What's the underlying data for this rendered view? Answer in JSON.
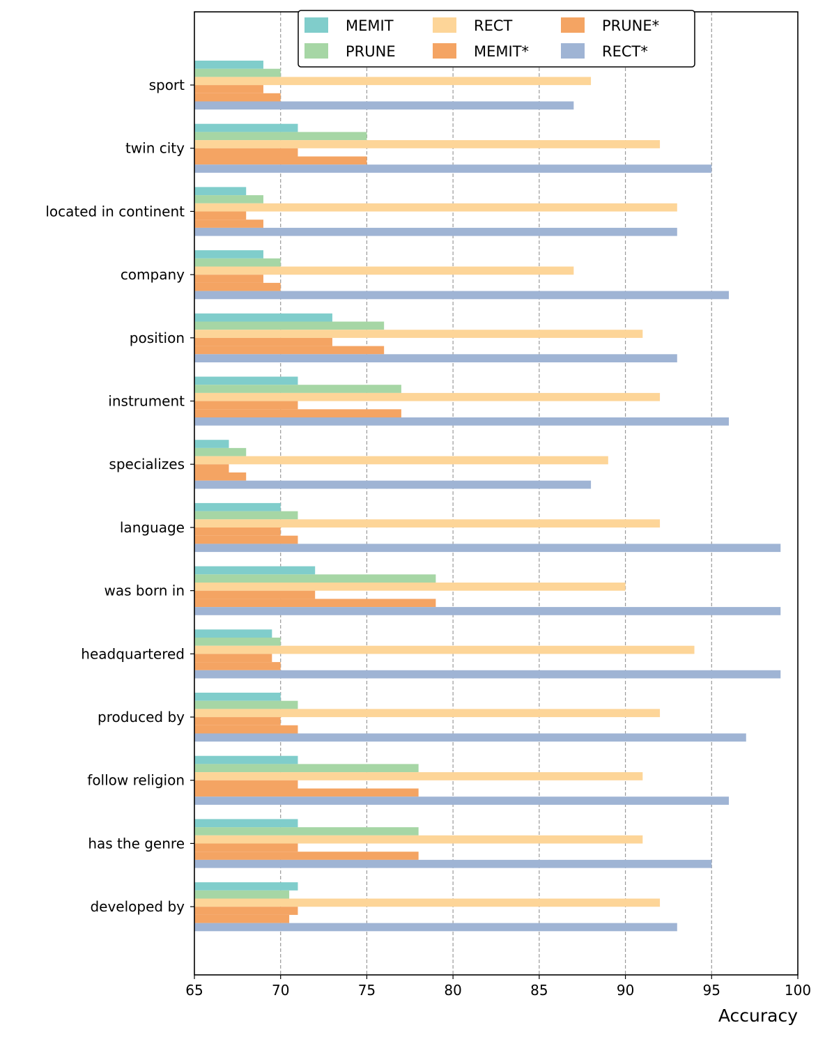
{
  "chart_data": {
    "type": "bar",
    "orientation": "horizontal",
    "title": "",
    "xlabel": "Accuracy",
    "ylabel": "",
    "xlim": [
      65,
      100
    ],
    "xticks": [
      "65",
      "70",
      "75",
      "80",
      "85",
      "90",
      "95",
      "100"
    ],
    "grid": "vertical dashed",
    "legend_position": "top-center",
    "categories": [
      "sport",
      "twin city",
      "located in continent",
      "company",
      "position",
      "instrument",
      "specializes",
      "language",
      "was born in",
      "headquartered",
      "produced by",
      "follow religion",
      "has the genre",
      "developed by"
    ],
    "series": [
      {
        "name": "MEMIT",
        "color": "#80cdcb",
        "values": [
          69,
          71,
          68,
          69,
          73,
          71,
          67,
          70,
          72,
          69.5,
          70,
          71,
          71,
          71
        ]
      },
      {
        "name": "PRUNE",
        "color": "#a6d6a5",
        "values": [
          70,
          75,
          69,
          70,
          76,
          77,
          68,
          71,
          79,
          70,
          71,
          78,
          78,
          70.5
        ]
      },
      {
        "name": "RECT",
        "color": "#fdd598",
        "values": [
          88,
          92,
          93,
          87,
          91,
          92,
          89,
          92,
          90,
          94,
          92,
          91,
          91,
          92
        ]
      },
      {
        "name": "MEMIT*",
        "color": "#f4a463",
        "values": [
          69,
          71,
          68,
          69,
          73,
          71,
          67,
          70,
          72,
          69.5,
          70,
          71,
          71,
          71
        ]
      },
      {
        "name": "PRUNE*",
        "color": "#f4a463",
        "values": [
          70,
          75,
          69,
          70,
          76,
          77,
          68,
          71,
          79,
          70,
          71,
          78,
          78,
          70.5
        ]
      },
      {
        "name": "RECT*",
        "color": "#9fb4d4",
        "values": [
          87,
          95,
          93,
          96,
          93,
          96,
          88,
          99,
          99,
          99,
          97,
          96,
          95,
          93
        ]
      }
    ],
    "legend_order": [
      "MEMIT",
      "PRUNE",
      "RECT",
      "MEMIT*",
      "PRUNE*",
      "RECT*"
    ]
  }
}
